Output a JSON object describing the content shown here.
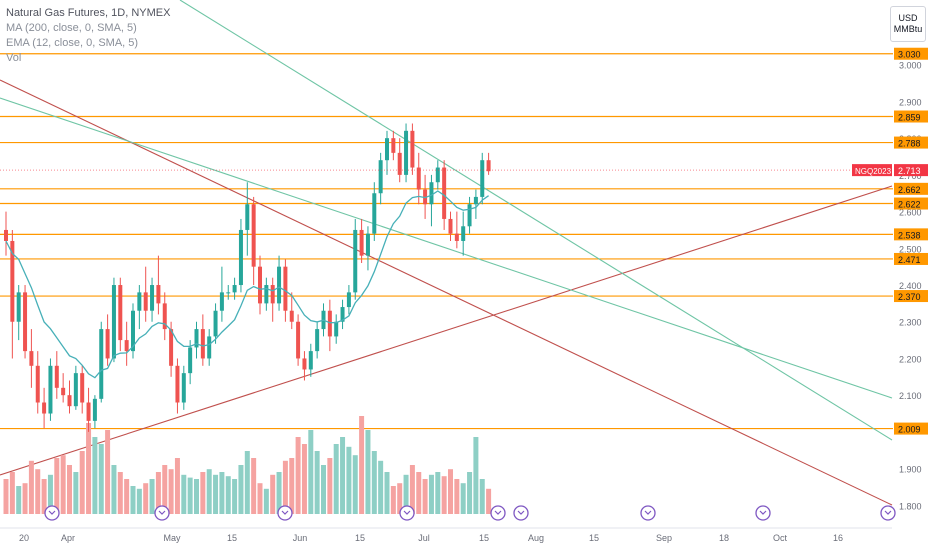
{
  "legend": {
    "title": "Natural Gas Futures, 1D, NYMEX",
    "ma": "MA (200, close, 0, SMA, 5)",
    "ema": "EMA (12, close, 0, SMA, 5)",
    "vol": "Vol"
  },
  "unit": {
    "currency": "USD",
    "measure": "MMBtu"
  },
  "colors": {
    "bull": "#26a69a",
    "bear": "#ef5350",
    "bull_vol": "#8ecfc5",
    "bear_vol": "#f5a3a1",
    "ema": "#47b0b8",
    "hline": "#ff9800",
    "trend_red": "#c0504d",
    "trend_green": "#6fc5a5",
    "price_tag": "#f23645"
  },
  "chart_data": {
    "type": "candlestick",
    "y_axis": {
      "range": [
        1.76,
        3.16
      ],
      "ticks": [
        "3.000",
        "2.900",
        "2.800",
        "2.700",
        "2.600",
        "2.500",
        "2.400",
        "2.300",
        "2.200",
        "2.100",
        "1.900",
        "1.800"
      ]
    },
    "x_axis": {
      "ticks": [
        "20",
        "Apr",
        "May",
        "15",
        "Jun",
        "15",
        "Jul",
        "15",
        "Aug",
        "15",
        "Sep",
        "18",
        "Oct",
        "16"
      ]
    },
    "levels": [
      "3.030",
      "2.859",
      "2.788",
      "2.662",
      "2.622",
      "2.538",
      "2.471",
      "2.370",
      "2.009"
    ],
    "current": {
      "symbol": "NGQ2023",
      "price": "2.713"
    },
    "candles": [
      [
        2.55,
        2.6,
        2.48,
        2.52
      ],
      [
        2.52,
        2.55,
        2.2,
        2.3
      ],
      [
        2.3,
        2.4,
        2.25,
        2.38
      ],
      [
        2.38,
        2.4,
        2.2,
        2.22
      ],
      [
        2.22,
        2.28,
        2.12,
        2.18
      ],
      [
        2.18,
        2.22,
        2.05,
        2.08
      ],
      [
        2.08,
        2.12,
        2.01,
        2.05
      ],
      [
        2.05,
        2.2,
        2.03,
        2.18
      ],
      [
        2.18,
        2.22,
        2.09,
        2.12
      ],
      [
        2.12,
        2.16,
        2.08,
        2.1
      ],
      [
        2.1,
        2.14,
        2.05,
        2.07
      ],
      [
        2.07,
        2.18,
        2.06,
        2.16
      ],
      [
        2.16,
        2.18,
        2.05,
        2.08
      ],
      [
        2.08,
        2.12,
        2.0,
        2.03
      ],
      [
        2.03,
        2.1,
        2.01,
        2.09
      ],
      [
        2.09,
        2.3,
        2.08,
        2.28
      ],
      [
        2.28,
        2.32,
        2.18,
        2.2
      ],
      [
        2.2,
        2.42,
        2.19,
        2.4
      ],
      [
        2.4,
        2.42,
        2.22,
        2.25
      ],
      [
        2.25,
        2.3,
        2.18,
        2.22
      ],
      [
        2.22,
        2.35,
        2.2,
        2.33
      ],
      [
        2.33,
        2.4,
        2.28,
        2.38
      ],
      [
        2.38,
        2.45,
        2.3,
        2.33
      ],
      [
        2.33,
        2.42,
        2.3,
        2.4
      ],
      [
        2.4,
        2.48,
        2.32,
        2.35
      ],
      [
        2.35,
        2.38,
        2.25,
        2.28
      ],
      [
        2.28,
        2.3,
        2.15,
        2.18
      ],
      [
        2.18,
        2.2,
        2.05,
        2.08
      ],
      [
        2.08,
        2.18,
        2.06,
        2.16
      ],
      [
        2.16,
        2.25,
        2.13,
        2.23
      ],
      [
        2.23,
        2.3,
        2.2,
        2.28
      ],
      [
        2.28,
        2.32,
        2.18,
        2.2
      ],
      [
        2.2,
        2.28,
        2.18,
        2.26
      ],
      [
        2.26,
        2.35,
        2.24,
        2.33
      ],
      [
        2.33,
        2.45,
        2.3,
        2.38
      ],
      [
        2.38,
        2.4,
        2.36,
        2.38
      ],
      [
        2.38,
        2.42,
        2.36,
        2.4
      ],
      [
        2.4,
        2.58,
        2.38,
        2.55
      ],
      [
        2.55,
        2.68,
        2.48,
        2.62
      ],
      [
        2.62,
        2.64,
        2.4,
        2.45
      ],
      [
        2.45,
        2.48,
        2.32,
        2.35
      ],
      [
        2.35,
        2.42,
        2.33,
        2.4
      ],
      [
        2.4,
        2.42,
        2.3,
        2.35
      ],
      [
        2.35,
        2.48,
        2.33,
        2.45
      ],
      [
        2.45,
        2.47,
        2.3,
        2.33
      ],
      [
        2.33,
        2.38,
        2.28,
        2.3
      ],
      [
        2.3,
        2.32,
        2.18,
        2.2
      ],
      [
        2.2,
        2.22,
        2.14,
        2.17
      ],
      [
        2.17,
        2.24,
        2.15,
        2.22
      ],
      [
        2.22,
        2.3,
        2.2,
        2.28
      ],
      [
        2.28,
        2.35,
        2.26,
        2.33
      ],
      [
        2.33,
        2.36,
        2.22,
        2.26
      ],
      [
        2.26,
        2.32,
        2.24,
        2.3
      ],
      [
        2.3,
        2.36,
        2.28,
        2.34
      ],
      [
        2.34,
        2.4,
        2.32,
        2.38
      ],
      [
        2.38,
        2.58,
        2.36,
        2.55
      ],
      [
        2.55,
        2.58,
        2.46,
        2.48
      ],
      [
        2.48,
        2.56,
        2.44,
        2.54
      ],
      [
        2.54,
        2.68,
        2.52,
        2.65
      ],
      [
        2.65,
        2.76,
        2.62,
        2.74
      ],
      [
        2.74,
        2.82,
        2.7,
        2.8
      ],
      [
        2.8,
        2.82,
        2.74,
        2.76
      ],
      [
        2.76,
        2.8,
        2.68,
        2.7
      ],
      [
        2.7,
        2.84,
        2.68,
        2.82
      ],
      [
        2.82,
        2.84,
        2.7,
        2.72
      ],
      [
        2.72,
        2.76,
        2.62,
        2.66
      ],
      [
        2.66,
        2.7,
        2.58,
        2.62
      ],
      [
        2.62,
        2.7,
        2.56,
        2.68
      ],
      [
        2.68,
        2.74,
        2.66,
        2.72
      ],
      [
        2.72,
        2.74,
        2.55,
        2.58
      ],
      [
        2.58,
        2.6,
        2.52,
        2.54
      ],
      [
        2.54,
        2.6,
        2.5,
        2.52
      ],
      [
        2.52,
        2.6,
        2.48,
        2.56
      ],
      [
        2.56,
        2.64,
        2.54,
        2.62
      ],
      [
        2.62,
        2.66,
        2.58,
        2.64
      ],
      [
        2.64,
        2.76,
        2.62,
        2.74
      ],
      [
        2.74,
        2.76,
        2.7,
        2.71
      ]
    ],
    "volume": [
      0.25,
      0.3,
      0.2,
      0.22,
      0.38,
      0.32,
      0.25,
      0.28,
      0.4,
      0.42,
      0.35,
      0.3,
      0.45,
      0.65,
      0.55,
      0.5,
      0.6,
      0.35,
      0.3,
      0.25,
      0.2,
      0.18,
      0.22,
      0.25,
      0.3,
      0.35,
      0.32,
      0.4,
      0.28,
      0.26,
      0.25,
      0.3,
      0.32,
      0.28,
      0.3,
      0.27,
      0.25,
      0.35,
      0.45,
      0.4,
      0.22,
      0.18,
      0.28,
      0.3,
      0.38,
      0.4,
      0.55,
      0.5,
      0.6,
      0.45,
      0.35,
      0.4,
      0.5,
      0.55,
      0.48,
      0.42,
      0.7,
      0.6,
      0.45,
      0.38,
      0.3,
      0.2,
      0.22,
      0.28,
      0.35,
      0.3,
      0.25,
      0.28,
      0.3,
      0.27,
      0.32,
      0.25,
      0.22,
      0.3,
      0.55,
      0.25,
      0.18
    ]
  }
}
